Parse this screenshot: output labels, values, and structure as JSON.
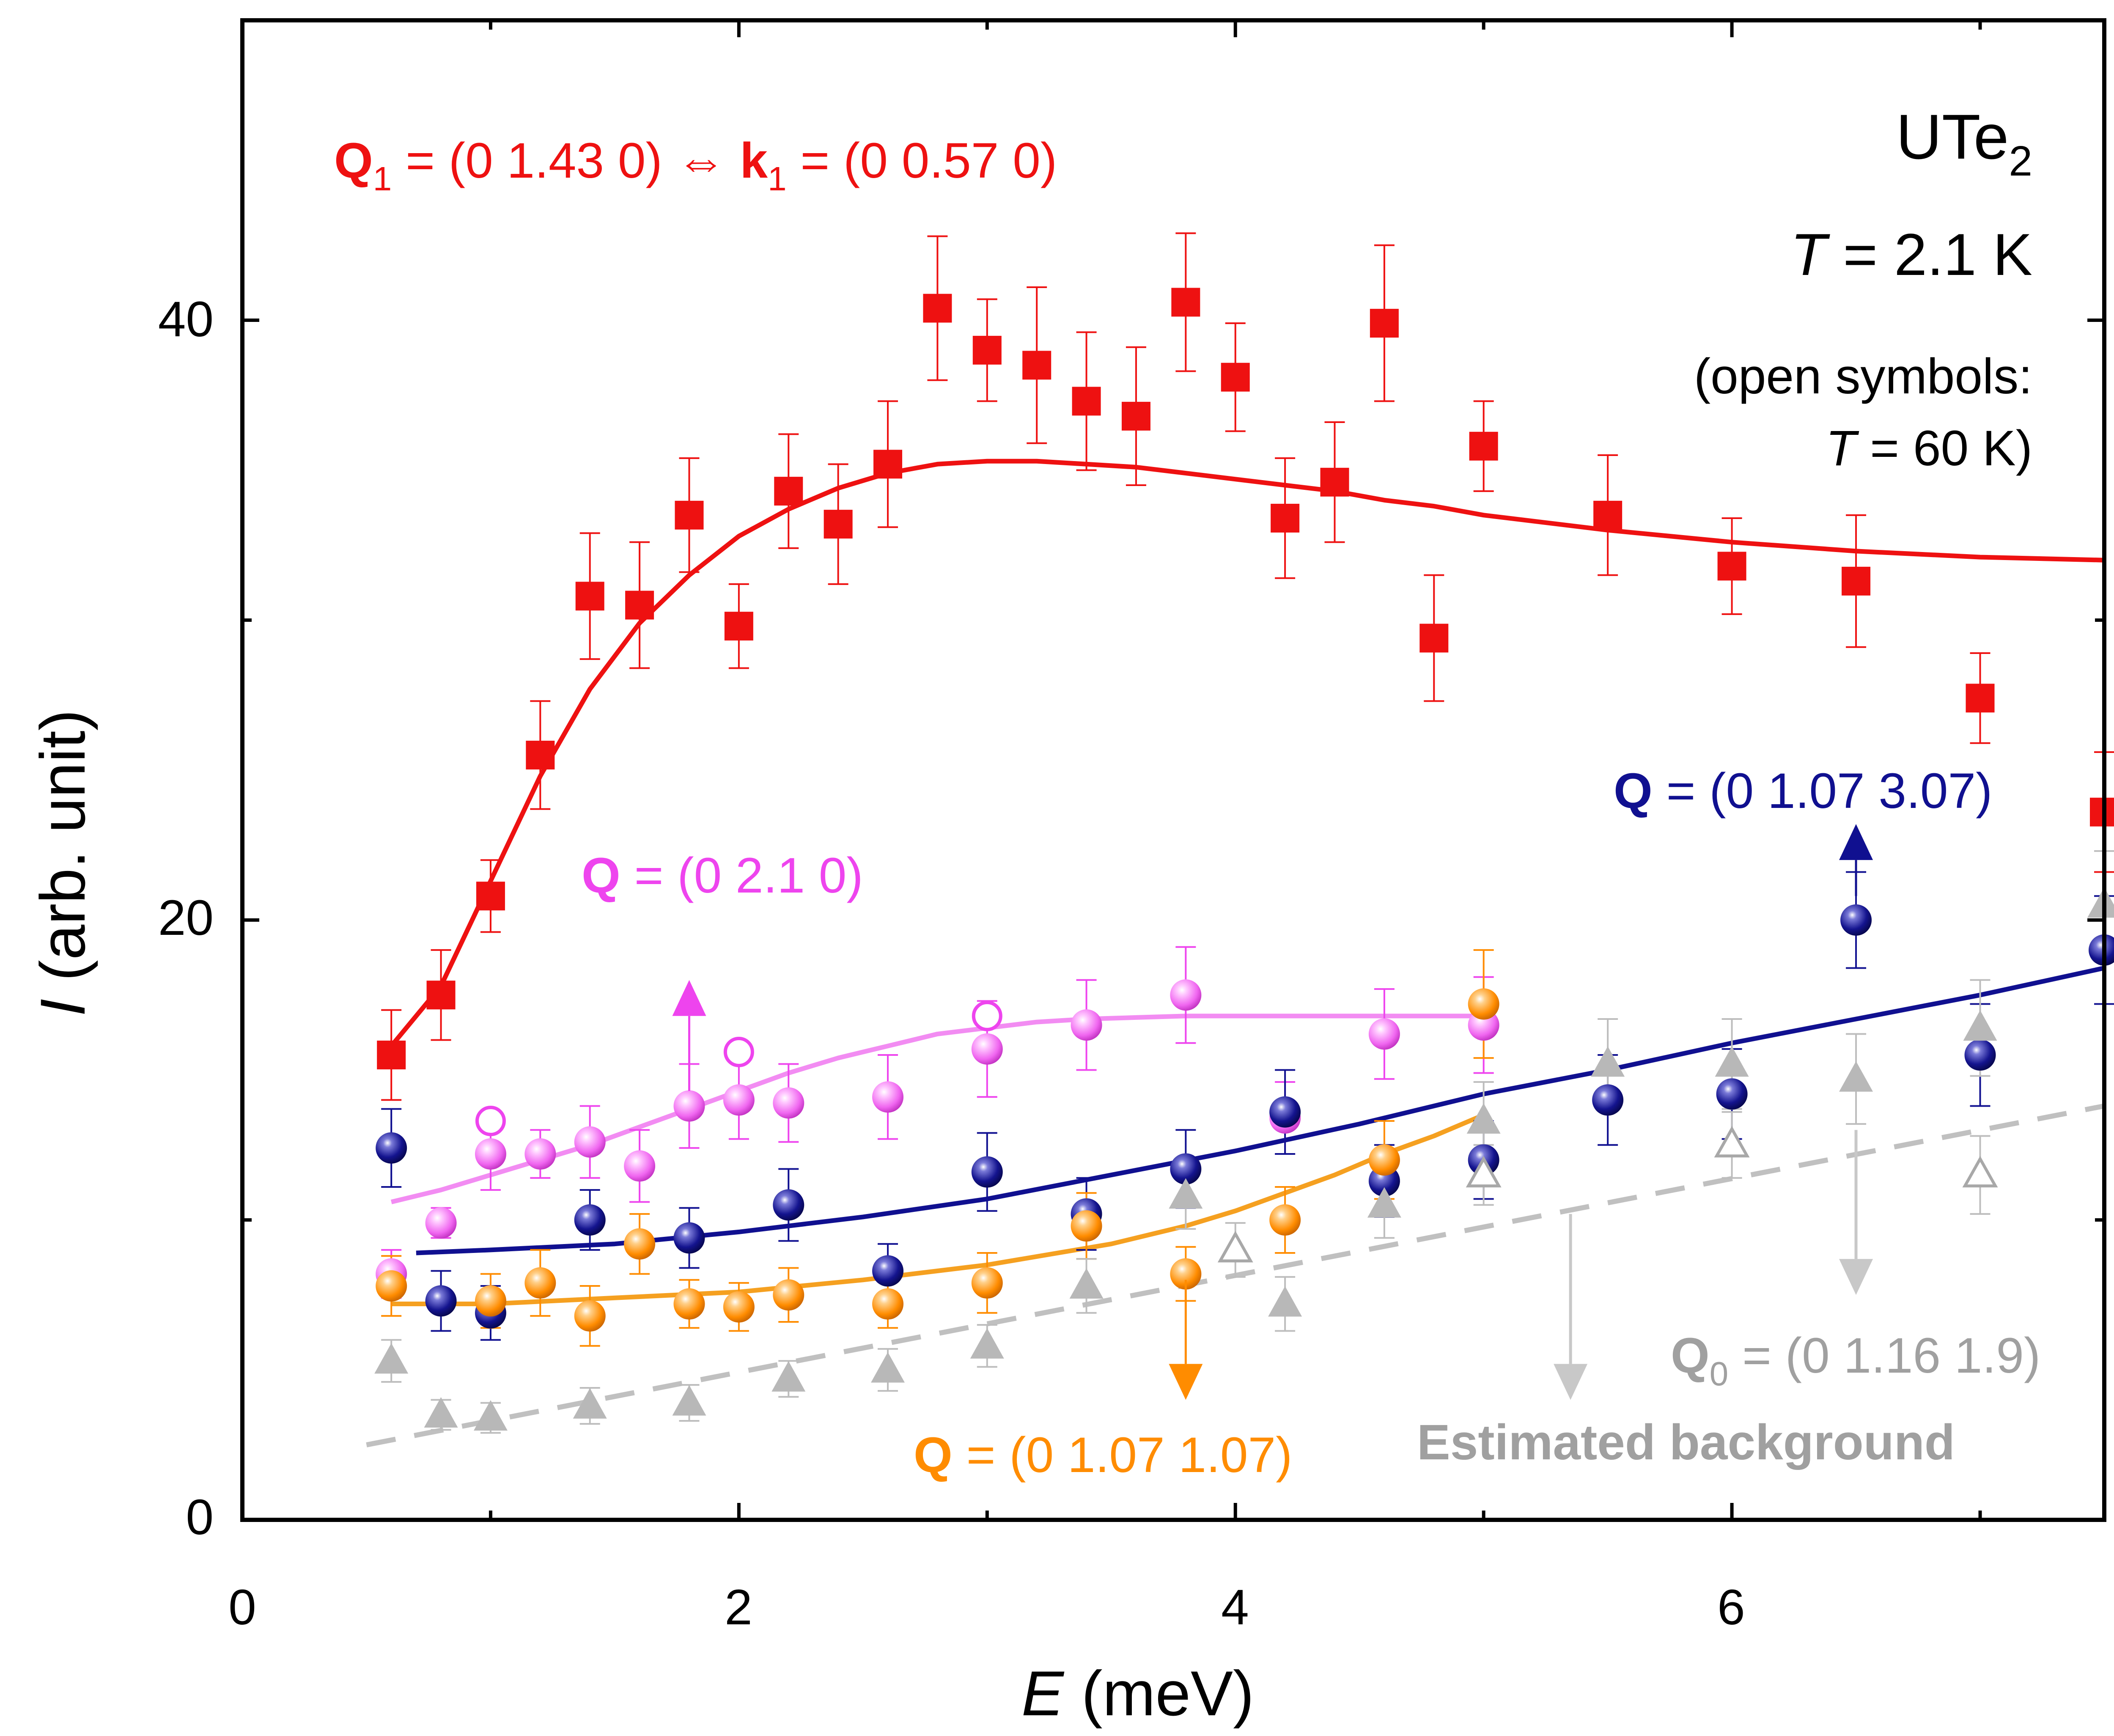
{
  "chart_data": {
    "type": "scatter",
    "title": "",
    "xlabel": {
      "symbol": "E",
      "unit": " (meV)"
    },
    "ylabel": {
      "symbol": "I",
      "unit": " (arb. unit)"
    },
    "xlim": [
      0,
      7.5
    ],
    "ylim": [
      0,
      50
    ],
    "xticks": [
      0,
      2,
      4,
      6
    ],
    "xtick_labels": [
      "0",
      "2",
      "4",
      "6"
    ],
    "yticks": [
      0,
      20,
      40
    ],
    "ytick_labels": [
      "0",
      "20",
      "40"
    ],
    "grid": false,
    "sample_label": {
      "base": "UTe",
      "sub": "2"
    },
    "temperature_label": {
      "symbol": "T",
      "text": " = 2.1 K"
    },
    "open_note": {
      "line1": "(open symbols:",
      "line2_symbol": "T",
      "line2_text": " = 60 K)"
    },
    "series": [
      {
        "name": "Q1 = (0 1.43 0)",
        "color": "#ee1111",
        "marker": "square",
        "label": {
          "q": "Q",
          "q_sub": "1",
          "q_val": " = (0 1.43 0) ",
          "arrow": "⇔",
          "k": " k",
          "k_sub": "1",
          "k_val": " = (0 0.57 0)"
        },
        "points": [
          {
            "x": 0.6,
            "y": 15.5,
            "err": 1.5
          },
          {
            "x": 0.8,
            "y": 17.5,
            "err": 1.5
          },
          {
            "x": 1.0,
            "y": 20.8,
            "err": 1.2
          },
          {
            "x": 1.2,
            "y": 25.5,
            "err": 1.8
          },
          {
            "x": 1.4,
            "y": 30.8,
            "err": 2.1
          },
          {
            "x": 1.6,
            "y": 30.5,
            "err": 2.1
          },
          {
            "x": 1.8,
            "y": 33.5,
            "err": 1.9
          },
          {
            "x": 2.0,
            "y": 29.8,
            "err": 1.4
          },
          {
            "x": 2.2,
            "y": 34.3,
            "err": 1.9
          },
          {
            "x": 2.4,
            "y": 33.2,
            "err": 2.0
          },
          {
            "x": 2.6,
            "y": 35.2,
            "err": 2.1
          },
          {
            "x": 2.8,
            "y": 40.4,
            "err": 2.4
          },
          {
            "x": 3.0,
            "y": 39.0,
            "err": 1.7
          },
          {
            "x": 3.2,
            "y": 38.5,
            "err": 2.6
          },
          {
            "x": 3.4,
            "y": 37.3,
            "err": 2.3
          },
          {
            "x": 3.6,
            "y": 36.8,
            "err": 2.3
          },
          {
            "x": 3.8,
            "y": 40.6,
            "err": 2.3
          },
          {
            "x": 4.0,
            "y": 38.1,
            "err": 1.8
          },
          {
            "x": 4.2,
            "y": 33.4,
            "err": 2.0
          },
          {
            "x": 4.4,
            "y": 34.6,
            "err": 2.0
          },
          {
            "x": 4.6,
            "y": 39.9,
            "err": 2.6
          },
          {
            "x": 4.8,
            "y": 29.4,
            "err": 2.1
          },
          {
            "x": 5.0,
            "y": 35.8,
            "err": 1.5
          },
          {
            "x": 5.5,
            "y": 33.5,
            "err": 2.0
          },
          {
            "x": 6.0,
            "y": 31.8,
            "err": 1.6
          },
          {
            "x": 6.5,
            "y": 31.3,
            "err": 2.2
          },
          {
            "x": 7.0,
            "y": 27.4,
            "err": 1.5
          },
          {
            "x": 7.5,
            "y": 23.6,
            "err": 2.0
          }
        ],
        "fit": [
          [
            0.6,
            15.8
          ],
          [
            0.8,
            17.8
          ],
          [
            1.0,
            21.3
          ],
          [
            1.2,
            24.8
          ],
          [
            1.4,
            27.7
          ],
          [
            1.6,
            29.9
          ],
          [
            1.8,
            31.5
          ],
          [
            2.0,
            32.8
          ],
          [
            2.2,
            33.7
          ],
          [
            2.4,
            34.4
          ],
          [
            2.6,
            34.9
          ],
          [
            2.8,
            35.2
          ],
          [
            3.0,
            35.3
          ],
          [
            3.2,
            35.3
          ],
          [
            3.4,
            35.2
          ],
          [
            3.6,
            35.1
          ],
          [
            3.8,
            34.9
          ],
          [
            4.0,
            34.7
          ],
          [
            4.2,
            34.5
          ],
          [
            4.4,
            34.3
          ],
          [
            4.6,
            34.0
          ],
          [
            4.8,
            33.8
          ],
          [
            5.0,
            33.5
          ],
          [
            5.5,
            33.0
          ],
          [
            6.0,
            32.6
          ],
          [
            6.5,
            32.3
          ],
          [
            7.0,
            32.1
          ],
          [
            7.5,
            32.0
          ]
        ]
      },
      {
        "name": "Q = (0 2.1 0)",
        "color": "#ee44ee",
        "marker": "sphere",
        "label": {
          "q": "Q",
          "q_val": " = (0 2.1 0)"
        },
        "points": [
          {
            "x": 0.6,
            "y": 8.2,
            "err": 0.8
          },
          {
            "x": 0.8,
            "y": 9.9,
            "err": 0.5
          },
          {
            "x": 1.0,
            "y": 12.2,
            "err": 1.2
          },
          {
            "x": 1.2,
            "y": 12.2,
            "err": 0.8
          },
          {
            "x": 1.4,
            "y": 12.6,
            "err": 1.2
          },
          {
            "x": 1.6,
            "y": 11.8,
            "err": 1.2
          },
          {
            "x": 1.8,
            "y": 13.8,
            "err": 1.4
          },
          {
            "x": 2.0,
            "y": 14.0,
            "err": 1.3
          },
          {
            "x": 2.2,
            "y": 13.9,
            "err": 1.3
          },
          {
            "x": 2.6,
            "y": 14.1,
            "err": 1.4
          },
          {
            "x": 3.0,
            "y": 15.7,
            "err": 1.6
          },
          {
            "x": 3.4,
            "y": 16.5,
            "err": 1.5
          },
          {
            "x": 3.8,
            "y": 17.5,
            "err": 1.6
          },
          {
            "x": 4.2,
            "y": 13.4,
            "err": 1.2
          },
          {
            "x": 4.6,
            "y": 16.2,
            "err": 1.5
          },
          {
            "x": 5.0,
            "y": 16.5,
            "err": 1.6
          }
        ],
        "open_points": [
          {
            "x": 1.0,
            "y": 13.3
          },
          {
            "x": 2.0,
            "y": 15.6
          },
          {
            "x": 3.0,
            "y": 16.8
          }
        ],
        "fit": [
          [
            0.6,
            10.6
          ],
          [
            0.8,
            11.0
          ],
          [
            1.0,
            11.5
          ],
          [
            1.2,
            12.0
          ],
          [
            1.4,
            12.5
          ],
          [
            1.6,
            13.1
          ],
          [
            1.8,
            13.7
          ],
          [
            2.0,
            14.3
          ],
          [
            2.2,
            14.9
          ],
          [
            2.4,
            15.4
          ],
          [
            2.6,
            15.8
          ],
          [
            2.8,
            16.2
          ],
          [
            3.0,
            16.4
          ],
          [
            3.2,
            16.6
          ],
          [
            3.4,
            16.7
          ],
          [
            3.6,
            16.75
          ],
          [
            3.8,
            16.8
          ],
          [
            4.0,
            16.8
          ],
          [
            4.4,
            16.8
          ],
          [
            4.8,
            16.8
          ],
          [
            5.0,
            16.8
          ]
        ]
      },
      {
        "name": "Q = (0 1.07 3.07)",
        "color": "#101090",
        "marker": "sphere",
        "label": {
          "q": "Q",
          "q_val": " = (0 1.07 3.07)"
        },
        "points": [
          {
            "x": 0.6,
            "y": 12.4,
            "err": 1.3
          },
          {
            "x": 0.8,
            "y": 7.3,
            "err": 1.0
          },
          {
            "x": 1.0,
            "y": 6.9,
            "err": 0.9
          },
          {
            "x": 1.4,
            "y": 10.0,
            "err": 1.0
          },
          {
            "x": 1.8,
            "y": 9.4,
            "err": 1.0
          },
          {
            "x": 2.2,
            "y": 10.5,
            "err": 1.2
          },
          {
            "x": 2.6,
            "y": 8.3,
            "err": 0.9
          },
          {
            "x": 3.0,
            "y": 11.6,
            "err": 1.3
          },
          {
            "x": 3.4,
            "y": 10.2,
            "err": 1.2
          },
          {
            "x": 3.8,
            "y": 11.7,
            "err": 1.3
          },
          {
            "x": 4.2,
            "y": 13.6,
            "err": 1.4
          },
          {
            "x": 4.6,
            "y": 11.3,
            "err": 1.2
          },
          {
            "x": 5.0,
            "y": 12.0,
            "err": 1.3
          },
          {
            "x": 5.5,
            "y": 14.0,
            "err": 1.5
          },
          {
            "x": 6.0,
            "y": 14.2,
            "err": 1.5
          },
          {
            "x": 6.5,
            "y": 20.0,
            "err": 1.6
          },
          {
            "x": 7.0,
            "y": 15.5,
            "err": 1.7
          },
          {
            "x": 7.5,
            "y": 19.0,
            "err": 1.8
          }
        ],
        "fit": [
          [
            0.7,
            8.9
          ],
          [
            1.0,
            9.0
          ],
          [
            1.5,
            9.2
          ],
          [
            2.0,
            9.6
          ],
          [
            2.5,
            10.1
          ],
          [
            3.0,
            10.7
          ],
          [
            3.5,
            11.5
          ],
          [
            4.0,
            12.3
          ],
          [
            4.5,
            13.2
          ],
          [
            5.0,
            14.2
          ],
          [
            5.5,
            15.0
          ],
          [
            6.0,
            15.9
          ],
          [
            6.5,
            16.7
          ],
          [
            7.0,
            17.5
          ],
          [
            7.5,
            18.4
          ]
        ]
      },
      {
        "name": "Q = (0 1.07 1.07)",
        "color": "#ff8c00",
        "marker": "sphere",
        "label": {
          "q": "Q",
          "q_val": " = (0 1.07 1.07)"
        },
        "points": [
          {
            "x": 0.6,
            "y": 7.8,
            "err": 1.0
          },
          {
            "x": 1.0,
            "y": 7.3,
            "err": 0.9
          },
          {
            "x": 1.2,
            "y": 7.9,
            "err": 1.1
          },
          {
            "x": 1.4,
            "y": 6.8,
            "err": 1.0
          },
          {
            "x": 1.6,
            "y": 9.2,
            "err": 1.0
          },
          {
            "x": 1.8,
            "y": 7.2,
            "err": 0.8
          },
          {
            "x": 2.0,
            "y": 7.1,
            "err": 0.8
          },
          {
            "x": 2.2,
            "y": 7.5,
            "err": 0.9
          },
          {
            "x": 2.6,
            "y": 7.2,
            "err": 0.8
          },
          {
            "x": 3.0,
            "y": 7.9,
            "err": 1.0
          },
          {
            "x": 3.4,
            "y": 9.8,
            "err": 1.1
          },
          {
            "x": 3.8,
            "y": 8.2,
            "err": 0.9
          },
          {
            "x": 4.2,
            "y": 10.0,
            "err": 1.1
          },
          {
            "x": 4.6,
            "y": 12.0,
            "err": 1.3
          },
          {
            "x": 5.0,
            "y": 17.2,
            "err": 1.8
          }
        ],
        "fit": [
          [
            0.6,
            7.2
          ],
          [
            1.0,
            7.2
          ],
          [
            1.5,
            7.4
          ],
          [
            2.0,
            7.6
          ],
          [
            2.5,
            8.0
          ],
          [
            3.0,
            8.5
          ],
          [
            3.5,
            9.2
          ],
          [
            3.8,
            9.8
          ],
          [
            4.0,
            10.3
          ],
          [
            4.2,
            10.9
          ],
          [
            4.4,
            11.5
          ],
          [
            4.6,
            12.2
          ],
          [
            4.8,
            12.8
          ],
          [
            5.0,
            13.5
          ]
        ]
      },
      {
        "name": "Q0 = (0 1.16 1.9)",
        "color": "#b8b8b8",
        "marker": "triangle",
        "label": {
          "q": "Q",
          "q_sub": "0",
          "q_val": " = (0 1.16 1.9)"
        },
        "points": [
          {
            "x": 0.6,
            "y": 5.3,
            "err": 0.7
          },
          {
            "x": 0.8,
            "y": 3.5,
            "err": 0.5
          },
          {
            "x": 1.0,
            "y": 3.4,
            "err": 0.5
          },
          {
            "x": 1.4,
            "y": 3.8,
            "err": 0.6
          },
          {
            "x": 1.8,
            "y": 3.9,
            "err": 0.6
          },
          {
            "x": 2.2,
            "y": 4.7,
            "err": 0.6
          },
          {
            "x": 2.6,
            "y": 5.0,
            "err": 0.7
          },
          {
            "x": 3.0,
            "y": 5.8,
            "err": 0.7
          },
          {
            "x": 3.4,
            "y": 7.8,
            "err": 0.9
          },
          {
            "x": 3.8,
            "y": 10.8,
            "err": 1.1
          },
          {
            "x": 4.2,
            "y": 7.2,
            "err": 0.9
          },
          {
            "x": 4.6,
            "y": 10.5,
            "err": 1.1
          },
          {
            "x": 5.0,
            "y": 13.3,
            "err": 1.3
          },
          {
            "x": 5.5,
            "y": 15.2,
            "err": 1.5
          },
          {
            "x": 6.0,
            "y": 15.2,
            "err": 1.5
          },
          {
            "x": 6.5,
            "y": 14.7,
            "err": 1.5
          },
          {
            "x": 7.0,
            "y": 16.4,
            "err": 1.6
          },
          {
            "x": 7.5,
            "y": 20.5,
            "err": 1.8
          }
        ],
        "open_points": [
          {
            "x": 4.0,
            "y": 9.0,
            "err": 0.9
          },
          {
            "x": 5.0,
            "y": 11.5,
            "err": 1.0
          },
          {
            "x": 6.0,
            "y": 12.5,
            "err": 1.1
          },
          {
            "x": 7.0,
            "y": 11.5,
            "err": 1.3
          }
        ]
      }
    ],
    "background_line": {
      "name": "Estimated background",
      "color": "#c0c0c0",
      "style": "dashed",
      "points": [
        [
          0.5,
          2.5
        ],
        [
          7.5,
          13.8
        ]
      ]
    },
    "arrows": [
      {
        "x": 1.8,
        "y_from": 14.3,
        "y_to": 18.0,
        "direction": "up",
        "color": "#ee44ee"
      },
      {
        "x": 6.5,
        "y_from": 20.8,
        "y_to": 23.2,
        "direction": "up",
        "color": "#101090"
      },
      {
        "x": 3.8,
        "y_from": 8.0,
        "y_to": 4.0,
        "direction": "down",
        "color": "#ff8c00"
      },
      {
        "x": 5.35,
        "y_from": 10.2,
        "y_to": 4.0,
        "direction": "down",
        "color": "#c8c8c8"
      },
      {
        "x": 6.5,
        "y_from": 13.0,
        "y_to": 7.5,
        "direction": "down",
        "color": "#c8c8c8"
      }
    ]
  }
}
